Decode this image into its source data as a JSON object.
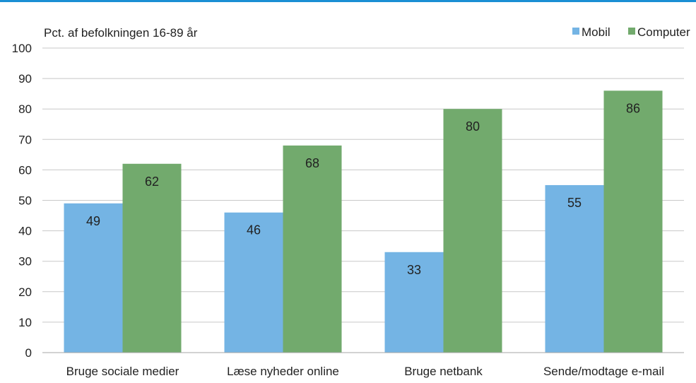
{
  "chart_data": {
    "type": "bar",
    "subtitle": "Pct. af befolkningen 16-89 år",
    "categories": [
      "Bruge sociale medier",
      "Læse nyheder online",
      "Bruge netbank",
      "Sende/modtage e-mail"
    ],
    "series": [
      {
        "name": "Mobil",
        "values": [
          49,
          46,
          33,
          55
        ]
      },
      {
        "name": "Computer",
        "values": [
          62,
          68,
          80,
          86
        ]
      }
    ],
    "ylim": [
      0,
      100
    ],
    "yticks": [
      "0",
      "10",
      "20",
      "30",
      "40",
      "50",
      "60",
      "70",
      "80",
      "90",
      "100"
    ],
    "grid": true,
    "legend": "top-right",
    "colors": {
      "top_rule": "#1a8fd4",
      "Mobil": "#74b4e4",
      "Computer": "#72aa6d",
      "grid": "#c8c8c8",
      "axis": "#a6a6a6",
      "text": "#222222"
    }
  }
}
